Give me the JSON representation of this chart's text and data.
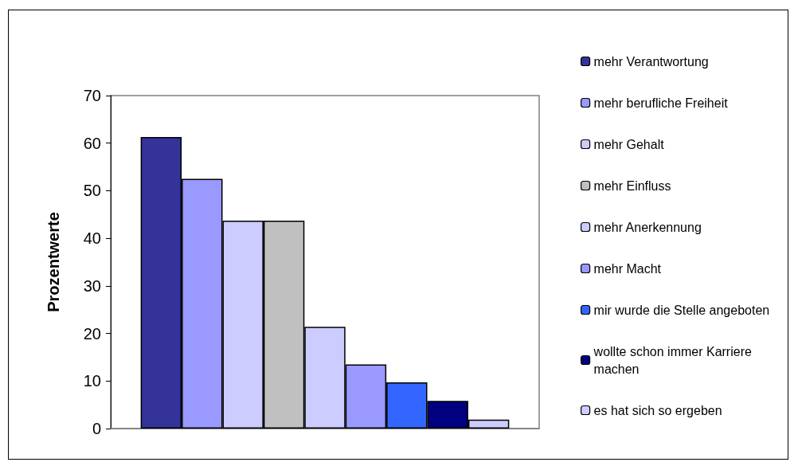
{
  "chart_data": {
    "type": "bar",
    "ylabel": "Prozentwerte",
    "categories": [
      null
    ],
    "series": [
      {
        "name": "mehr Verantwortung",
        "color": "#333399",
        "values": [
          61.3
        ]
      },
      {
        "name": "mehr berufliche Freiheit",
        "color": "#9999ff",
        "values": [
          52.5
        ]
      },
      {
        "name": "mehr Gehalt",
        "color": "#ccccff",
        "values": [
          43.7
        ]
      },
      {
        "name": "mehr Einfluss",
        "color": "#c0c0c0",
        "values": [
          43.7
        ]
      },
      {
        "name": "mehr Anerkennung",
        "color": "#ccccff",
        "values": [
          21.4
        ]
      },
      {
        "name": "mehr Macht",
        "color": "#9999ff",
        "values": [
          13.5
        ]
      },
      {
        "name": "mir wurde die Stelle angeboten",
        "color": "#3366ff",
        "values": [
          9.7
        ]
      },
      {
        "name": "wollte schon immer Karriere machen",
        "color": "#000080",
        "values": [
          5.8
        ]
      },
      {
        "name": "es hat sich so ergeben",
        "color": "#ccccff",
        "values": [
          1.9
        ]
      }
    ],
    "ylim": [
      0,
      70
    ],
    "yticks": [
      0,
      10,
      20,
      30,
      40,
      50,
      60,
      70
    ],
    "grid": false,
    "legend": "right"
  }
}
